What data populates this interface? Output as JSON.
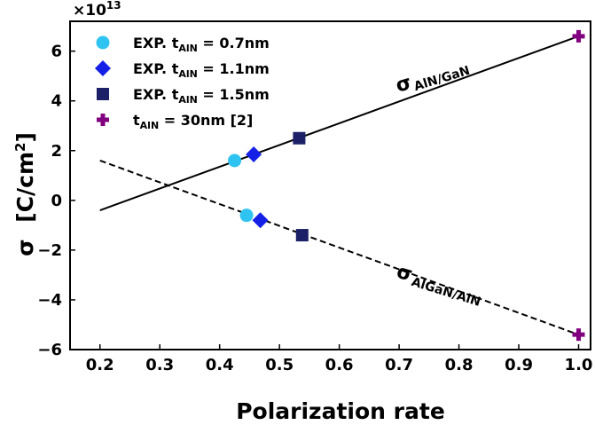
{
  "chart_data": {
    "type": "scatter",
    "xlabel": "Polarization rate",
    "ylabel_main": "σ",
    "ylabel_unit": "[C/cm",
    "ylabel_unit_sup": "2",
    "ylabel_unit_end": "]",
    "y_scale_base": "×10",
    "y_scale_exp": "13",
    "xlim": [
      0.15,
      1.02
    ],
    "ylim": [
      -6,
      7.2
    ],
    "x_ticks": [
      0.2,
      0.3,
      0.4,
      0.5,
      0.6,
      0.7,
      0.8,
      0.9,
      1.0
    ],
    "x_tick_labels": [
      "0.2",
      "0.3",
      "0.4",
      "0.5",
      "0.6",
      "0.7",
      "0.8",
      "0.9",
      "1.0"
    ],
    "y_ticks": [
      -6,
      -4,
      -2,
      0,
      2,
      4,
      6
    ],
    "y_tick_labels": [
      "−6",
      "−4",
      "−2",
      "0",
      "2",
      "4",
      "6"
    ],
    "grid": false,
    "legend_position": "top-left",
    "series": [
      {
        "name_main": "EXP. t",
        "name_sub": "AlN",
        "name_tail": " = 0.7nm",
        "marker": "circle",
        "color": "#2ec3f0",
        "points": [
          {
            "x": 0.425,
            "y": 1.6
          },
          {
            "x": 0.445,
            "y": -0.6
          }
        ]
      },
      {
        "name_main": "EXP. t",
        "name_sub": "AlN",
        "name_tail": " = 1.1nm",
        "marker": "diamond",
        "color": "#1420e6",
        "points": [
          {
            "x": 0.457,
            "y": 1.85
          },
          {
            "x": 0.468,
            "y": -0.8
          }
        ]
      },
      {
        "name_main": "EXP. t",
        "name_sub": "AlN",
        "name_tail": " = 1.5nm",
        "marker": "square",
        "color": "#1c2066",
        "points": [
          {
            "x": 0.533,
            "y": 2.5
          },
          {
            "x": 0.538,
            "y": -1.4
          }
        ]
      },
      {
        "name_main": "t",
        "name_sub": "AlN",
        "name_tail": " = 30nm [2]",
        "marker": "plus",
        "color": "#800080",
        "points": [
          {
            "x": 1.0,
            "y": 6.6
          },
          {
            "x": 1.0,
            "y": -5.4
          }
        ]
      }
    ],
    "fit_lines": [
      {
        "style": "solid",
        "x": [
          0.2,
          1.0
        ],
        "y": [
          -0.4,
          6.6
        ]
      },
      {
        "style": "dashed",
        "x": [
          0.2,
          1.0
        ],
        "y": [
          1.6,
          -5.4
        ]
      }
    ],
    "annotations": [
      {
        "main": "σ",
        "sub": "AlN/GaN"
      },
      {
        "main": "σ",
        "sub": "AlGaN/AlN"
      }
    ]
  }
}
